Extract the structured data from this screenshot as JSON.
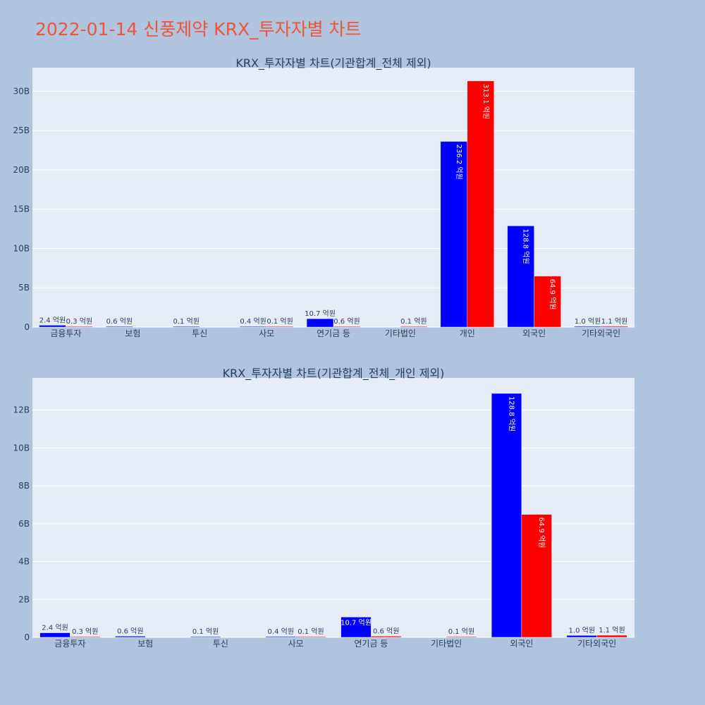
{
  "page_title": "2022-01-14 신풍제약 KRX_투자자별 차트",
  "colors": {
    "buy": "#0000ff",
    "sell": "#ff0000",
    "plot_bg": "#e5ecf6",
    "paper_bg": "#b0c4de",
    "title": "#ef553b"
  },
  "chart_data": [
    {
      "type": "bar",
      "title": "KRX_투자자별 차트(기관합계_전체 제외)",
      "categories": [
        "금융투자",
        "보험",
        "투신",
        "사모",
        "연기금 등",
        "기타법인",
        "개인",
        "외국인",
        "기타외국인"
      ],
      "ylim": [
        0,
        33
      ],
      "yticks": [
        0,
        5,
        10,
        15,
        20,
        25,
        30
      ],
      "ytick_labels": [
        "0",
        "5B",
        "10B",
        "15B",
        "20B",
        "25B",
        "30B"
      ],
      "grid": true,
      "series": [
        {
          "color": "#0000ff",
          "values": [
            0.24,
            0.06,
            0.01,
            0.04,
            1.07,
            0,
            23.62,
            12.88,
            0.1
          ],
          "labels": [
            "2.4 억원",
            "0.6 억원",
            "0.1 억원",
            "0.4 억원",
            "10.7 억원",
            "",
            "236.2 억원",
            "128.8 억원",
            "1.0 억원"
          ]
        },
        {
          "color": "#ff0000",
          "values": [
            0.03,
            0,
            0,
            0.01,
            0.06,
            0.01,
            31.31,
            6.49,
            0.11
          ],
          "labels": [
            "0.3 억원",
            "",
            "",
            "0.1 억원",
            "0.6 억원",
            "0.1 억원",
            "313.1 억원",
            "64.9 억원",
            "1.1 억원"
          ]
        }
      ]
    },
    {
      "type": "bar",
      "title": "KRX_투자자별 차트(기관합계_전체_개인 제외)",
      "categories": [
        "금융투자",
        "보험",
        "투신",
        "사모",
        "연기금 등",
        "기타법인",
        "외국인",
        "기타외국인"
      ],
      "ylim": [
        0,
        13.7
      ],
      "yticks": [
        0,
        2,
        4,
        6,
        8,
        10,
        12
      ],
      "ytick_labels": [
        "0",
        "2B",
        "4B",
        "6B",
        "8B",
        "10B",
        "12B"
      ],
      "grid": true,
      "series": [
        {
          "color": "#0000ff",
          "values": [
            0.24,
            0.06,
            0.01,
            0.04,
            1.07,
            0,
            12.88,
            0.1
          ],
          "labels": [
            "2.4 억원",
            "0.6 억원",
            "0.1 억원",
            "0.4 억원",
            "10.7 억원",
            "",
            "128.8 억원",
            "1.0 억원"
          ]
        },
        {
          "color": "#ff0000",
          "values": [
            0.03,
            0,
            0,
            0.01,
            0.06,
            0.01,
            6.49,
            0.11
          ],
          "labels": [
            "0.3 억원",
            "",
            "",
            "0.1 억원",
            "0.6 억원",
            "0.1 억원",
            "64.9 억원",
            "1.1 억원"
          ]
        }
      ]
    }
  ]
}
